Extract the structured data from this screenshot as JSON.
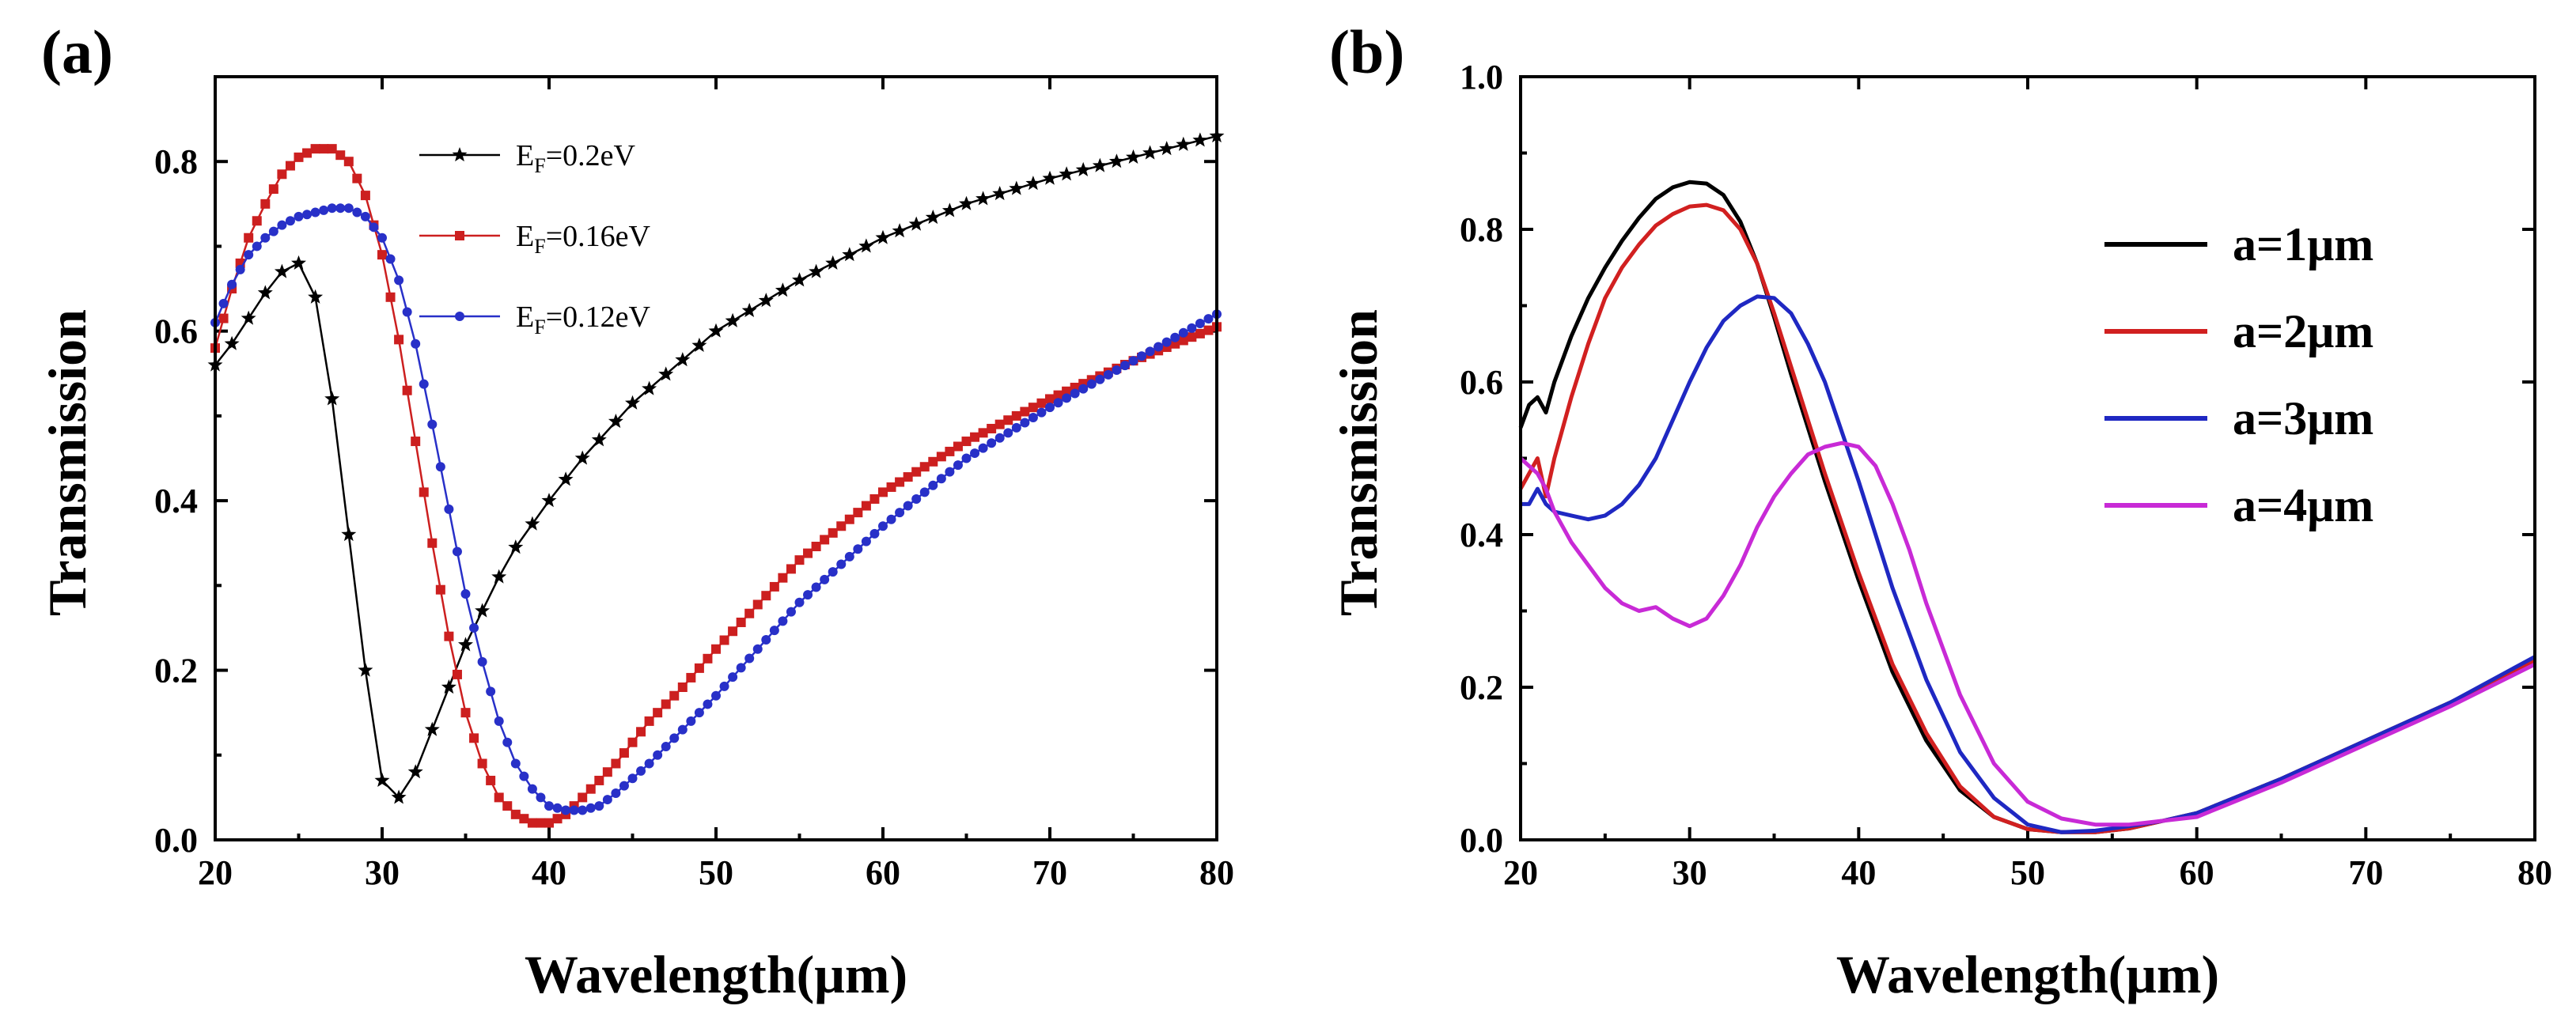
{
  "chart_data": [
    {
      "type": "line",
      "panel_label": "(a)",
      "xlabel": "Wavelength(μm)",
      "ylabel": "Transmission",
      "xlim": [
        20,
        80
      ],
      "ylim": [
        0.0,
        0.9
      ],
      "xticks": [
        20,
        30,
        40,
        50,
        60,
        70,
        80
      ],
      "xtick_labels": [
        "20",
        "30",
        "40",
        "50",
        "60",
        "70",
        "80"
      ],
      "yticks": [
        0.0,
        0.2,
        0.4,
        0.6,
        0.8
      ],
      "ytick_labels": [
        "0.0",
        "0.2",
        "0.4",
        "0.6",
        "0.8"
      ],
      "legend_position": "top-center",
      "series": [
        {
          "name_base": "E",
          "name_sub": "F",
          "name_value": "=0.2eV",
          "color": "#000000",
          "marker": "star",
          "x": [
            20,
            21,
            22,
            23,
            24,
            25,
            26,
            27,
            28,
            29,
            30,
            31,
            32,
            33,
            34,
            35,
            36,
            37,
            38,
            40,
            42,
            45,
            50,
            55,
            60,
            65,
            70,
            75,
            80
          ],
          "y": [
            0.56,
            0.585,
            0.615,
            0.645,
            0.67,
            0.68,
            0.64,
            0.52,
            0.36,
            0.2,
            0.07,
            0.05,
            0.08,
            0.13,
            0.18,
            0.23,
            0.27,
            0.31,
            0.345,
            0.4,
            0.45,
            0.515,
            0.6,
            0.66,
            0.71,
            0.75,
            0.78,
            0.805,
            0.83
          ]
        },
        {
          "name_base": "E",
          "name_sub": "F",
          "name_value": "=0.16eV",
          "color": "#cc1f1f",
          "marker": "square",
          "x": [
            20,
            21,
            22,
            23,
            24,
            25,
            26,
            27,
            28,
            29,
            30,
            31,
            32,
            33,
            34,
            35,
            36,
            37,
            38,
            39,
            40,
            41,
            42,
            43,
            44,
            46,
            48,
            50,
            55,
            60,
            65,
            70,
            75,
            80
          ],
          "y": [
            0.58,
            0.65,
            0.71,
            0.75,
            0.785,
            0.805,
            0.815,
            0.815,
            0.8,
            0.76,
            0.69,
            0.59,
            0.47,
            0.35,
            0.24,
            0.15,
            0.09,
            0.05,
            0.03,
            0.02,
            0.02,
            0.03,
            0.05,
            0.07,
            0.09,
            0.14,
            0.18,
            0.225,
            0.33,
            0.41,
            0.47,
            0.52,
            0.565,
            0.605
          ]
        },
        {
          "name_base": "E",
          "name_sub": "F",
          "name_value": "=0.12eV",
          "color": "#2830c8",
          "marker": "circle",
          "x": [
            20,
            21,
            22,
            23,
            24,
            25,
            26,
            27,
            28,
            29,
            30,
            31,
            32,
            33,
            34,
            35,
            36,
            37,
            38,
            39,
            40,
            41,
            42,
            43,
            44,
            46,
            48,
            50,
            55,
            60,
            65,
            70,
            75,
            80
          ],
          "y": [
            0.61,
            0.655,
            0.69,
            0.71,
            0.725,
            0.735,
            0.74,
            0.745,
            0.745,
            0.735,
            0.71,
            0.66,
            0.585,
            0.49,
            0.39,
            0.29,
            0.21,
            0.14,
            0.09,
            0.06,
            0.04,
            0.035,
            0.035,
            0.04,
            0.055,
            0.09,
            0.13,
            0.17,
            0.28,
            0.37,
            0.45,
            0.51,
            0.565,
            0.62
          ]
        }
      ]
    },
    {
      "type": "line",
      "panel_label": "(b)",
      "xlabel": "Wavelength(μm)",
      "ylabel": "Transmission",
      "xlim": [
        20,
        80
      ],
      "ylim": [
        0.0,
        1.0
      ],
      "xticks": [
        20,
        30,
        40,
        50,
        60,
        70,
        80
      ],
      "xtick_labels": [
        "20",
        "30",
        "40",
        "50",
        "60",
        "70",
        "80"
      ],
      "yticks": [
        0.0,
        0.2,
        0.4,
        0.6,
        0.8,
        1.0
      ],
      "ytick_labels": [
        "0.0",
        "0.2",
        "0.4",
        "0.6",
        "0.8",
        "1.0"
      ],
      "legend_position": "top-right",
      "series": [
        {
          "name": "a=1μm",
          "color": "#000000",
          "x": [
            20,
            20.5,
            21,
            21.5,
            22,
            23,
            24,
            25,
            26,
            27,
            28,
            29,
            30,
            31,
            32,
            33,
            34,
            35,
            36,
            38,
            40,
            42,
            44,
            46,
            48,
            50,
            52,
            54,
            56,
            58,
            60,
            65,
            70,
            75,
            80
          ],
          "y": [
            0.54,
            0.57,
            0.58,
            0.56,
            0.6,
            0.66,
            0.71,
            0.75,
            0.785,
            0.815,
            0.84,
            0.855,
            0.862,
            0.86,
            0.845,
            0.81,
            0.755,
            0.685,
            0.61,
            0.47,
            0.34,
            0.22,
            0.13,
            0.065,
            0.03,
            0.014,
            0.01,
            0.01,
            0.015,
            0.025,
            0.035,
            0.08,
            0.13,
            0.18,
            0.235
          ]
        },
        {
          "name": "a=2μm",
          "color": "#d12020",
          "x": [
            20,
            20.5,
            21,
            21.5,
            22,
            23,
            24,
            25,
            26,
            27,
            28,
            29,
            30,
            31,
            32,
            33,
            34,
            35,
            36,
            38,
            40,
            42,
            44,
            46,
            48,
            50,
            52,
            54,
            56,
            58,
            60,
            65,
            70,
            75,
            80
          ],
          "y": [
            0.46,
            0.48,
            0.5,
            0.45,
            0.5,
            0.58,
            0.65,
            0.71,
            0.75,
            0.78,
            0.805,
            0.82,
            0.83,
            0.832,
            0.825,
            0.8,
            0.755,
            0.69,
            0.62,
            0.48,
            0.35,
            0.23,
            0.14,
            0.07,
            0.03,
            0.014,
            0.01,
            0.01,
            0.015,
            0.025,
            0.035,
            0.08,
            0.13,
            0.18,
            0.235
          ]
        },
        {
          "name": "a=3μm",
          "color": "#1f28c2",
          "x": [
            20,
            20.5,
            21,
            21.5,
            22,
            23,
            24,
            25,
            26,
            27,
            28,
            29,
            30,
            31,
            32,
            33,
            34,
            35,
            36,
            37,
            38,
            40,
            42,
            44,
            46,
            48,
            50,
            52,
            54,
            56,
            58,
            60,
            65,
            70,
            75,
            80
          ],
          "y": [
            0.44,
            0.44,
            0.46,
            0.44,
            0.43,
            0.425,
            0.42,
            0.425,
            0.44,
            0.465,
            0.5,
            0.55,
            0.6,
            0.645,
            0.68,
            0.7,
            0.712,
            0.71,
            0.69,
            0.65,
            0.6,
            0.47,
            0.33,
            0.21,
            0.115,
            0.055,
            0.02,
            0.01,
            0.012,
            0.018,
            0.025,
            0.035,
            0.08,
            0.13,
            0.18,
            0.24
          ]
        },
        {
          "name": "a=4μm",
          "color": "#c82ad6",
          "x": [
            20,
            20.5,
            21,
            21.5,
            22,
            23,
            24,
            25,
            26,
            27,
            28,
            29,
            30,
            31,
            32,
            33,
            34,
            35,
            36,
            37,
            38,
            39,
            40,
            41,
            42,
            43,
            44,
            46,
            48,
            50,
            52,
            54,
            56,
            58,
            60,
            65,
            70,
            75,
            80
          ],
          "y": [
            0.5,
            0.49,
            0.48,
            0.46,
            0.43,
            0.39,
            0.36,
            0.33,
            0.31,
            0.3,
            0.305,
            0.29,
            0.28,
            0.29,
            0.32,
            0.36,
            0.41,
            0.45,
            0.48,
            0.505,
            0.515,
            0.52,
            0.515,
            0.49,
            0.44,
            0.38,
            0.31,
            0.19,
            0.1,
            0.05,
            0.028,
            0.02,
            0.02,
            0.025,
            0.03,
            0.075,
            0.125,
            0.175,
            0.23
          ]
        }
      ]
    }
  ]
}
